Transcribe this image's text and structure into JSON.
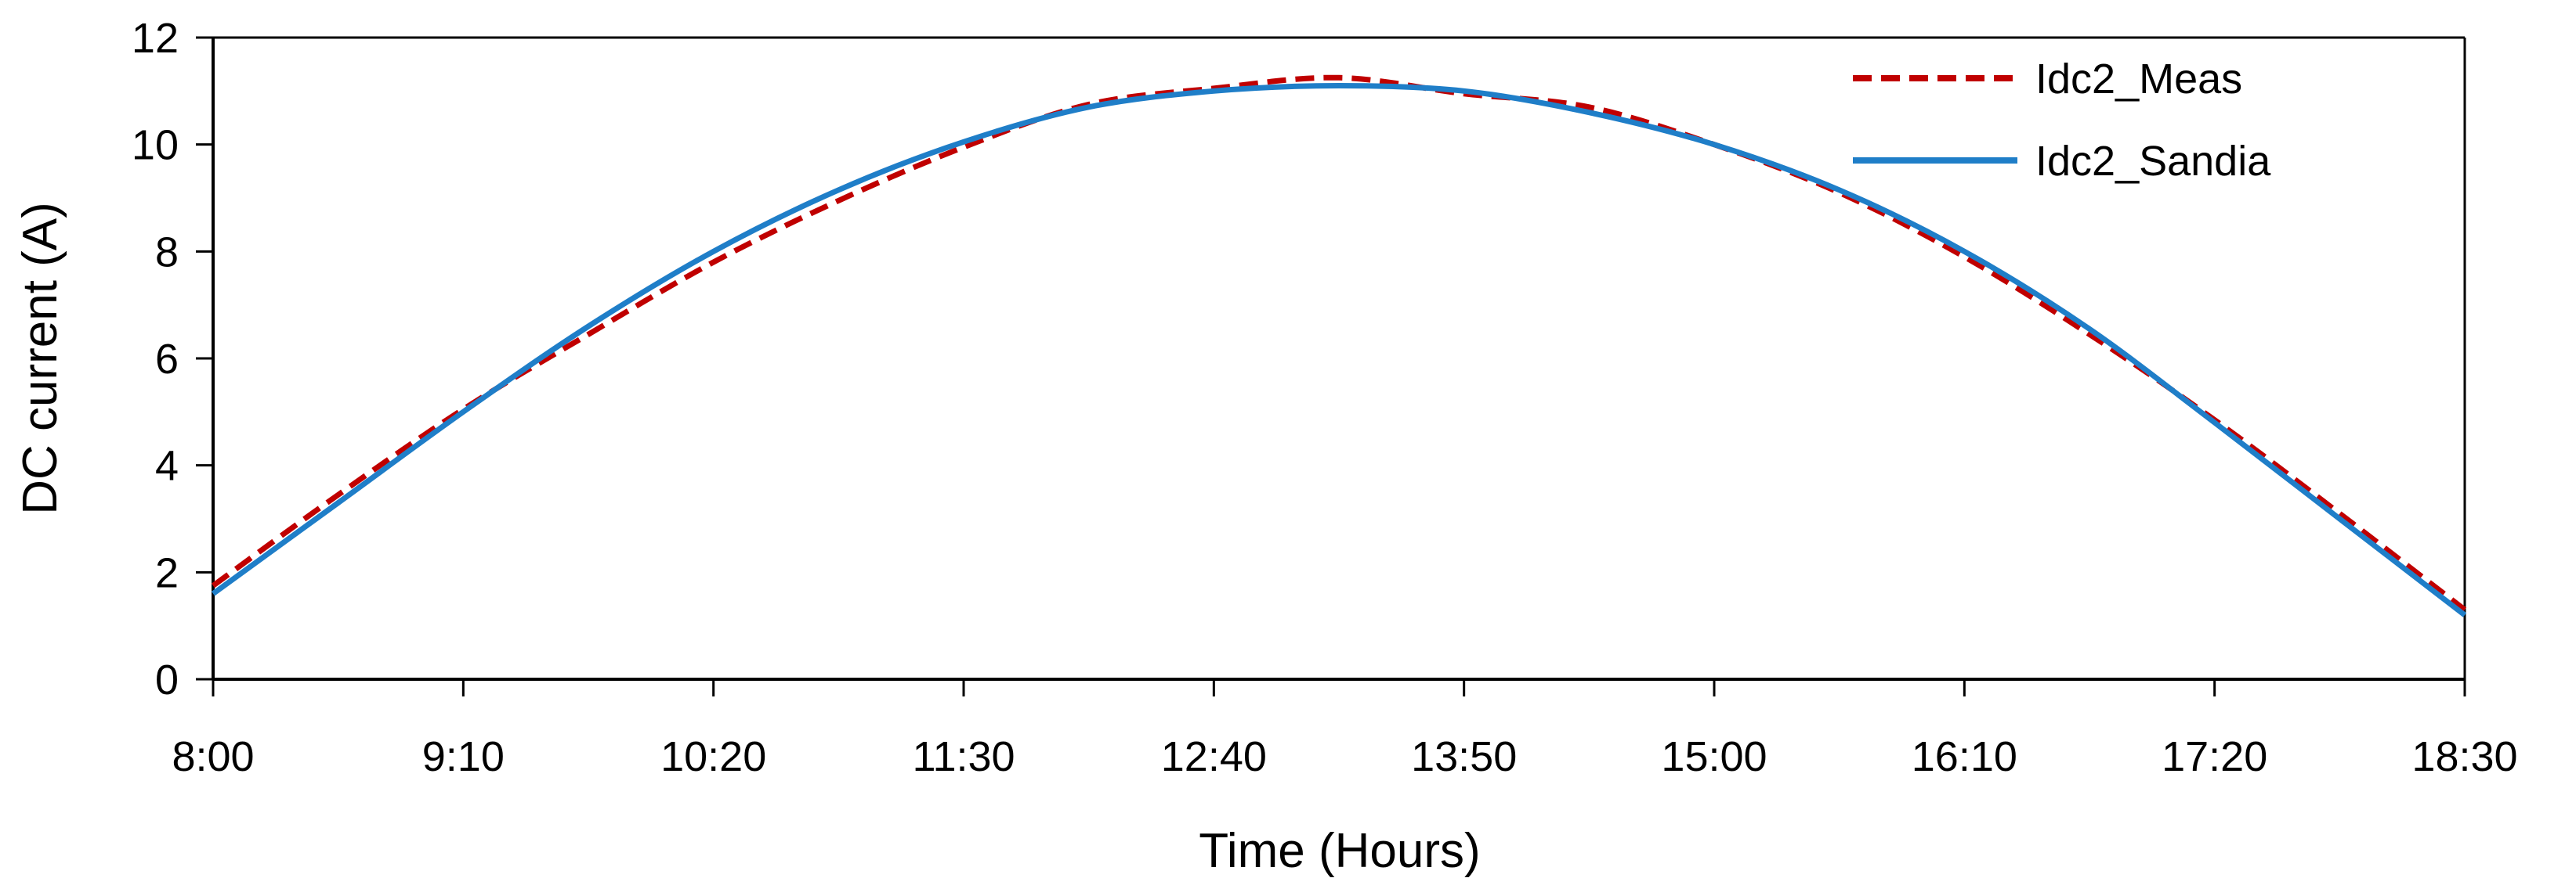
{
  "chart_data": {
    "type": "line",
    "xlabel": "Time (Hours)",
    "ylabel": "DC current (A)",
    "x_tick_labels": [
      "8:00",
      "9:10",
      "10:20",
      "11:30",
      "12:40",
      "13:50",
      "15:00",
      "16:10",
      "17:20",
      "18:30"
    ],
    "y_ticks": [
      0,
      2,
      4,
      6,
      8,
      10,
      12
    ],
    "xlim": [
      "8:00",
      "18:30"
    ],
    "ylim": [
      0,
      12
    ],
    "grid": false,
    "legend_position": "top-right",
    "x": [
      "8:00",
      "8:35",
      "9:10",
      "9:45",
      "10:20",
      "10:55",
      "11:30",
      "12:05",
      "12:40",
      "13:15",
      "13:50",
      "14:25",
      "15:00",
      "15:35",
      "16:10",
      "16:45",
      "17:20",
      "17:55",
      "18:30"
    ],
    "series": [
      {
        "name": "Idc2_Meas",
        "color": "#C00000",
        "style": "dashed",
        "values": [
          1.75,
          3.45,
          5.05,
          6.45,
          7.8,
          8.95,
          9.95,
          10.75,
          11.05,
          11.25,
          10.95,
          10.7,
          10.0,
          9.1,
          7.9,
          6.45,
          4.85,
          3.1,
          1.3
        ]
      },
      {
        "name": "Idc2_Sandia",
        "color": "#1F7EC8",
        "style": "solid",
        "values": [
          1.6,
          3.3,
          5.0,
          6.6,
          8.0,
          9.15,
          10.05,
          10.7,
          11.0,
          11.1,
          11.0,
          10.6,
          10.0,
          9.15,
          8.0,
          6.55,
          4.8,
          3.0,
          1.2
        ]
      }
    ]
  }
}
